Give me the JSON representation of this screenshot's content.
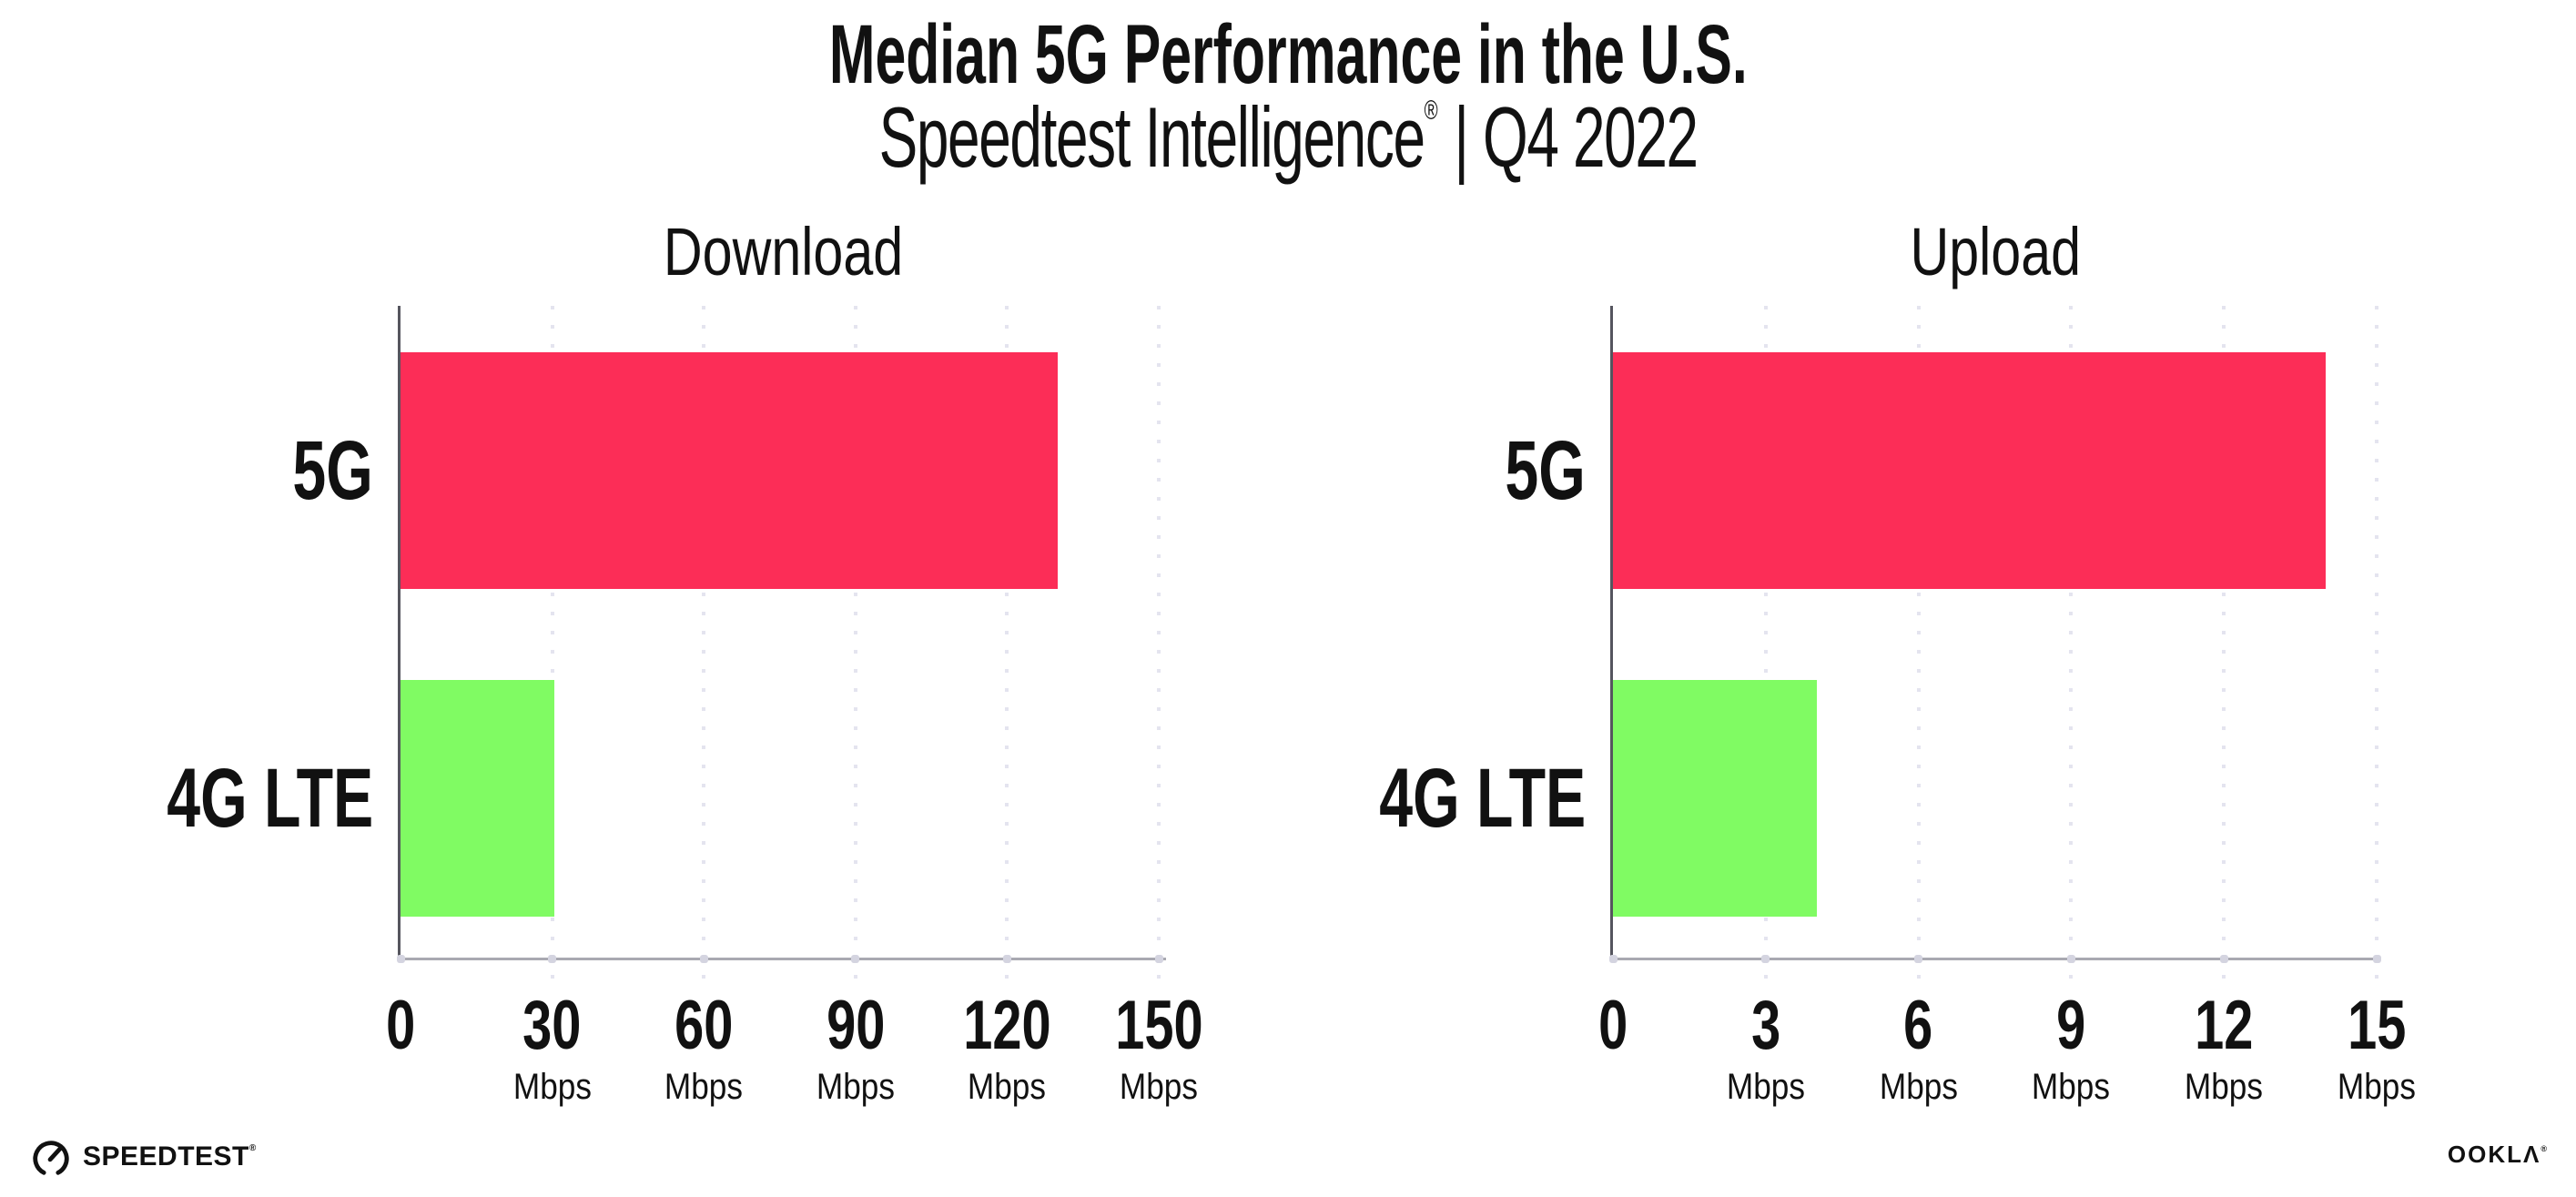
{
  "header": {
    "title": "Median 5G Performance in the U.S.",
    "subtitle_brand": "Speedtest Intelligence",
    "subtitle_reg": "®",
    "subtitle_rest": "| Q4 2022"
  },
  "chart_data": [
    {
      "type": "bar",
      "orientation": "horizontal",
      "title": "Download",
      "categories": [
        "5G",
        "4G LTE"
      ],
      "values": [
        130,
        30.5
      ],
      "unit": "Mbps",
      "xlim": [
        0,
        150
      ],
      "xticks": [
        0,
        30,
        60,
        90,
        120,
        150
      ],
      "xtick_unit_label": "Mbps",
      "bar_colors": [
        "#fc2d57",
        "#80fb63"
      ],
      "grid": "dotted-vertical-light",
      "legend_position": "none"
    },
    {
      "type": "bar",
      "orientation": "horizontal",
      "title": "Upload",
      "categories": [
        "5G",
        "4G LTE"
      ],
      "values": [
        14,
        4
      ],
      "unit": "Mbps",
      "xlim": [
        0,
        15
      ],
      "xticks": [
        0,
        3,
        6,
        9,
        12,
        15
      ],
      "xtick_unit_label": "Mbps",
      "bar_colors": [
        "#fc2d57",
        "#80fb63"
      ],
      "grid": "dotted-vertical-light",
      "legend_position": "none"
    }
  ],
  "footer": {
    "speedtest_label": "SPEEDTEST",
    "speedtest_reg": "®",
    "ookla_label": "OOKLΛ",
    "ookla_reg": "®"
  },
  "colors": {
    "bar_5g": "#fc2d57",
    "bar_4g_lte": "#80fb63",
    "axis_left": "#55555e",
    "axis_bottom": "#a9a9b1",
    "grid_dot": "#e4e4ef",
    "tick_dot": "#d4d4e0",
    "text": "#111111",
    "background": "#ffffff"
  }
}
